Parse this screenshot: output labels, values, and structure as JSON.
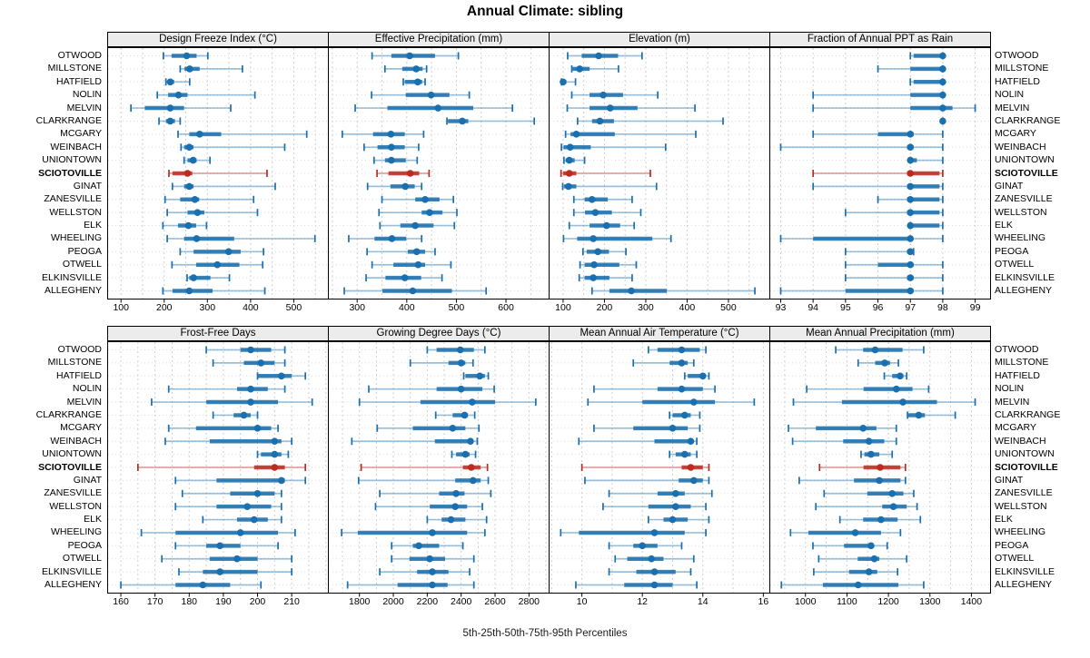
{
  "title": "Annual Climate: sibling",
  "caption": "5th-25th-50th-75th-95th Percentiles",
  "highlight_station": "SCIOTOVILLE",
  "colors": {
    "series_blue": "#1a6fae",
    "series_red": "#bb2b21",
    "strip_bg": "#ececec",
    "grid": "#cfcfcf",
    "row_grid": "#dcdcdc",
    "border": "#000000"
  },
  "chart_data": {
    "type": "dotplot-percentile-intervals",
    "layout": "2x4 trellis panels, shared station axis",
    "percentiles": [
      5,
      25,
      50,
      75,
      95
    ],
    "stations": [
      "OTWOOD",
      "MILLSTONE",
      "HATFIELD",
      "NOLIN",
      "MELVIN",
      "CLARKRANGE",
      "MCGARY",
      "WEINBACH",
      "UNIONTOWN",
      "SCIOTOVILLE",
      "GINAT",
      "ZANESVILLE",
      "WELLSTON",
      "ELK",
      "WHEELING",
      "PEOGA",
      "OTWELL",
      "ELKINSVILLE",
      "ALLEGHENY"
    ],
    "panels": [
      {
        "title": "Design Freeze Index (°C)",
        "domain": [
          68,
          579
        ],
        "ticks": [
          100,
          200,
          300,
          400,
          500
        ],
        "grid_step": 50,
        "series": [
          [
            198,
            217,
            252,
            275,
            301
          ],
          [
            237,
            247,
            259,
            282,
            381
          ],
          [
            204,
            209,
            214,
            223,
            259
          ],
          [
            184,
            209,
            233,
            254,
            410
          ],
          [
            123,
            155,
            214,
            246,
            354
          ],
          [
            188,
            204,
            214,
            225,
            237
          ],
          [
            232,
            258,
            282,
            332,
            530
          ],
          [
            239,
            246,
            258,
            268,
            479
          ],
          [
            246,
            254,
            267,
            275,
            306
          ],
          [
            211,
            219,
            254,
            265,
            438
          ],
          [
            219,
            246,
            258,
            268,
            457
          ],
          [
            202,
            237,
            271,
            281,
            407
          ],
          [
            207,
            254,
            277,
            293,
            416
          ],
          [
            197,
            232,
            256,
            274,
            298
          ],
          [
            207,
            246,
            275,
            362,
            549
          ],
          [
            237,
            268,
            349,
            377,
            430
          ],
          [
            218,
            274,
            323,
            374,
            428
          ],
          [
            253,
            258,
            268,
            307,
            351
          ],
          [
            197,
            219,
            258,
            312,
            433
          ]
        ]
      },
      {
        "title": "Effective Precipitation (mm)",
        "domain": [
          241,
          686
        ],
        "ticks": [
          300,
          400,
          500,
          600
        ],
        "grid_step": 50,
        "series": [
          [
            330,
            369,
            406,
            457,
            504
          ],
          [
            356,
            391,
            419,
            432,
            440
          ],
          [
            393,
            396,
            422,
            431,
            437
          ],
          [
            329,
            398,
            449,
            486,
            526
          ],
          [
            296,
            361,
            463,
            534,
            613
          ],
          [
            481,
            483,
            512,
            524,
            657
          ],
          [
            270,
            332,
            368,
            396,
            434
          ],
          [
            314,
            341,
            369,
            396,
            424
          ],
          [
            334,
            356,
            369,
            398,
            421
          ],
          [
            340,
            363,
            407,
            425,
            445
          ],
          [
            321,
            367,
            397,
            416,
            430
          ],
          [
            350,
            417,
            437,
            466,
            494
          ],
          [
            344,
            430,
            446,
            472,
            501
          ],
          [
            346,
            387,
            417,
            454,
            496
          ],
          [
            283,
            335,
            370,
            399,
            430
          ],
          [
            320,
            402,
            420,
            437,
            457
          ],
          [
            330,
            373,
            423,
            437,
            489
          ],
          [
            318,
            357,
            396,
            429,
            471
          ],
          [
            274,
            351,
            412,
            491,
            560
          ]
        ]
      },
      {
        "title": "Elevation (m)",
        "domain": [
          65,
          599
        ],
        "ticks": [
          100,
          200,
          300,
          400,
          500
        ],
        "grid_step": 50,
        "series": [
          [
            111,
            145,
            186,
            233,
            291
          ],
          [
            121,
            123,
            140,
            164,
            234
          ],
          [
            96,
            97,
            100,
            108,
            130
          ],
          [
            121,
            164,
            197,
            245,
            329
          ],
          [
            110,
            164,
            214,
            280,
            419
          ],
          [
            135,
            170,
            189,
            223,
            487
          ],
          [
            106,
            118,
            132,
            225,
            421
          ],
          [
            96,
            101,
            117,
            167,
            348
          ],
          [
            102,
            106,
            115,
            128,
            152
          ],
          [
            95,
            100,
            115,
            132,
            311
          ],
          [
            99,
            102,
            113,
            132,
            326
          ],
          [
            126,
            152,
            170,
            208,
            267
          ],
          [
            126,
            153,
            178,
            218,
            288
          ],
          [
            115,
            164,
            205,
            238,
            272
          ],
          [
            101,
            134,
            173,
            316,
            361
          ],
          [
            148,
            157,
            184,
            211,
            252
          ],
          [
            141,
            152,
            175,
            236,
            277
          ],
          [
            139,
            152,
            173,
            212,
            267
          ],
          [
            170,
            212,
            265,
            351,
            564
          ]
        ]
      },
      {
        "title": "Fraction of Annual PPT as Rain",
        "domain": [
          92.65,
          99.46
        ],
        "ticks": [
          93,
          94,
          95,
          96,
          97,
          98,
          99
        ],
        "grid_step": 1,
        "series": [
          [
            97,
            97.1,
            98,
            98,
            98
          ],
          [
            96,
            97,
            98,
            98,
            98
          ],
          [
            97,
            97.1,
            98,
            98,
            98
          ],
          [
            94,
            97,
            98,
            98,
            98
          ],
          [
            94,
            97,
            98,
            98.3,
            99
          ],
          [
            98,
            98,
            98,
            98,
            98
          ],
          [
            94,
            96,
            97,
            97.1,
            98
          ],
          [
            93,
            96.9,
            97,
            97.1,
            98
          ],
          [
            97,
            97,
            97,
            97.2,
            98
          ],
          [
            94,
            96.9,
            97,
            97.9,
            98
          ],
          [
            94,
            96.9,
            97,
            97.9,
            98
          ],
          [
            96,
            96.9,
            97,
            97.9,
            98
          ],
          [
            95,
            96.9,
            97,
            97.9,
            98
          ],
          [
            97,
            97,
            97,
            97.9,
            98
          ],
          [
            93,
            94,
            97,
            97,
            98
          ],
          [
            95,
            96.9,
            97,
            97,
            97.1
          ],
          [
            95,
            96,
            97,
            97.1,
            98
          ],
          [
            95,
            96.9,
            97,
            97.1,
            98
          ],
          [
            93,
            95,
            97,
            97.1,
            98
          ]
        ]
      },
      {
        "title": "Frost-Free Days",
        "domain": [
          156,
          220.6
        ],
        "ticks": [
          160,
          170,
          180,
          190,
          200,
          210
        ],
        "grid_step": 5,
        "series": [
          [
            185,
            195,
            198,
            204,
            208
          ],
          [
            187,
            196,
            201,
            205,
            208
          ],
          [
            200,
            200,
            207,
            210,
            214
          ],
          [
            174,
            194,
            198,
            203,
            208
          ],
          [
            169,
            185,
            198,
            206,
            216
          ],
          [
            187,
            193,
            196,
            198,
            200
          ],
          [
            174,
            182,
            200,
            204,
            206
          ],
          [
            173,
            186,
            205,
            207,
            210
          ],
          [
            200,
            201,
            205,
            207,
            209
          ],
          [
            165,
            199,
            205,
            208,
            214
          ],
          [
            176,
            188,
            207,
            208,
            214
          ],
          [
            178,
            192,
            200,
            205,
            207
          ],
          [
            176,
            188,
            197,
            204,
            207
          ],
          [
            184,
            194,
            199,
            203,
            207
          ],
          [
            166,
            176,
            195,
            206,
            211
          ],
          [
            176,
            185,
            189,
            195,
            206
          ],
          [
            172,
            186,
            194,
            200,
            210
          ],
          [
            177,
            184,
            189,
            200,
            210
          ],
          [
            160,
            176,
            184,
            192,
            201
          ]
        ]
      },
      {
        "title": "Growing Degree Days (°C)",
        "domain": [
          1614,
          2916
        ],
        "ticks": [
          1800,
          2000,
          2200,
          2400,
          2600,
          2800
        ],
        "grid_step": 100,
        "series": [
          [
            2200,
            2255,
            2395,
            2475,
            2540
          ],
          [
            2100,
            2325,
            2400,
            2425,
            2470
          ],
          [
            2415,
            2425,
            2510,
            2540,
            2560
          ],
          [
            1855,
            2255,
            2400,
            2525,
            2595
          ],
          [
            1800,
            2160,
            2465,
            2600,
            2840
          ],
          [
            2250,
            2350,
            2420,
            2440,
            2480
          ],
          [
            1905,
            2115,
            2350,
            2425,
            2505
          ],
          [
            1755,
            2245,
            2455,
            2470,
            2495
          ],
          [
            2345,
            2370,
            2425,
            2450,
            2485
          ],
          [
            1810,
            2410,
            2460,
            2515,
            2555
          ],
          [
            1795,
            2365,
            2470,
            2515,
            2560
          ],
          [
            1920,
            2270,
            2370,
            2420,
            2575
          ],
          [
            1895,
            2215,
            2365,
            2435,
            2525
          ],
          [
            2200,
            2285,
            2340,
            2425,
            2550
          ],
          [
            1695,
            1790,
            2230,
            2435,
            2540
          ],
          [
            1990,
            2115,
            2150,
            2270,
            2410
          ],
          [
            1990,
            2095,
            2215,
            2305,
            2475
          ],
          [
            1920,
            2140,
            2230,
            2325,
            2450
          ],
          [
            1730,
            2025,
            2230,
            2320,
            2475
          ]
        ]
      },
      {
        "title": "Mean Annual Air Temperature (°C)",
        "domain": [
          8.9,
          16.2
        ],
        "ticks": [
          10,
          12,
          14,
          16
        ],
        "grid_step": 1,
        "series": [
          [
            12.2,
            12.5,
            13.3,
            13.9,
            14.1
          ],
          [
            11.7,
            12.9,
            13.3,
            13.5,
            13.7
          ],
          [
            13.4,
            13.5,
            14.0,
            14.1,
            14.2
          ],
          [
            10.4,
            12.5,
            13.3,
            14.0,
            14.4
          ],
          [
            10.2,
            12.0,
            13.7,
            14.4,
            15.7
          ],
          [
            12.9,
            13.0,
            13.4,
            13.6,
            13.9
          ],
          [
            10.4,
            11.7,
            13.0,
            13.5,
            13.9
          ],
          [
            9.9,
            12.4,
            13.6,
            13.7,
            13.8
          ],
          [
            12.9,
            13.1,
            13.4,
            13.6,
            13.8
          ],
          [
            10.0,
            13.3,
            13.6,
            14.0,
            14.2
          ],
          [
            10.1,
            13.2,
            13.7,
            14.0,
            14.2
          ],
          [
            10.9,
            12.5,
            13.1,
            13.4,
            14.3
          ],
          [
            10.7,
            12.2,
            13.1,
            13.6,
            14.1
          ],
          [
            12.2,
            12.7,
            13.0,
            13.5,
            14.2
          ],
          [
            9.3,
            9.9,
            12.4,
            13.4,
            14.1
          ],
          [
            10.9,
            11.7,
            12.0,
            12.5,
            13.3
          ],
          [
            11.1,
            11.5,
            12.3,
            12.7,
            13.7
          ],
          [
            10.9,
            11.8,
            12.4,
            13.1,
            13.6
          ],
          [
            9.8,
            11.4,
            12.4,
            13.0,
            13.8
          ]
        ]
      },
      {
        "title": "Mean Annual Precipitation (mm)",
        "domain": [
          913,
          1445
        ],
        "ticks": [
          1000,
          1100,
          1200,
          1300,
          1400
        ],
        "grid_step": 50,
        "series": [
          [
            1073,
            1139,
            1168,
            1234,
            1285
          ],
          [
            1127,
            1168,
            1191,
            1204,
            1224
          ],
          [
            1190,
            1209,
            1228,
            1236,
            1244
          ],
          [
            1003,
            1140,
            1219,
            1258,
            1297
          ],
          [
            971,
            1088,
            1235,
            1317,
            1409
          ],
          [
            1246,
            1248,
            1273,
            1288,
            1361
          ],
          [
            959,
            1025,
            1139,
            1171,
            1219
          ],
          [
            969,
            1091,
            1153,
            1190,
            1219
          ],
          [
            1134,
            1142,
            1158,
            1178,
            1209
          ],
          [
            1034,
            1140,
            1180,
            1229,
            1241
          ],
          [
            985,
            1117,
            1178,
            1229,
            1241
          ],
          [
            1045,
            1149,
            1209,
            1236,
            1261
          ],
          [
            1025,
            1185,
            1212,
            1244,
            1269
          ],
          [
            1083,
            1139,
            1182,
            1222,
            1277
          ],
          [
            964,
            1007,
            1120,
            1182,
            1229
          ],
          [
            1018,
            1093,
            1158,
            1163,
            1197
          ],
          [
            1032,
            1126,
            1166,
            1178,
            1244
          ],
          [
            1020,
            1105,
            1153,
            1173,
            1222
          ],
          [
            942,
            1042,
            1127,
            1224,
            1285
          ]
        ]
      }
    ]
  }
}
